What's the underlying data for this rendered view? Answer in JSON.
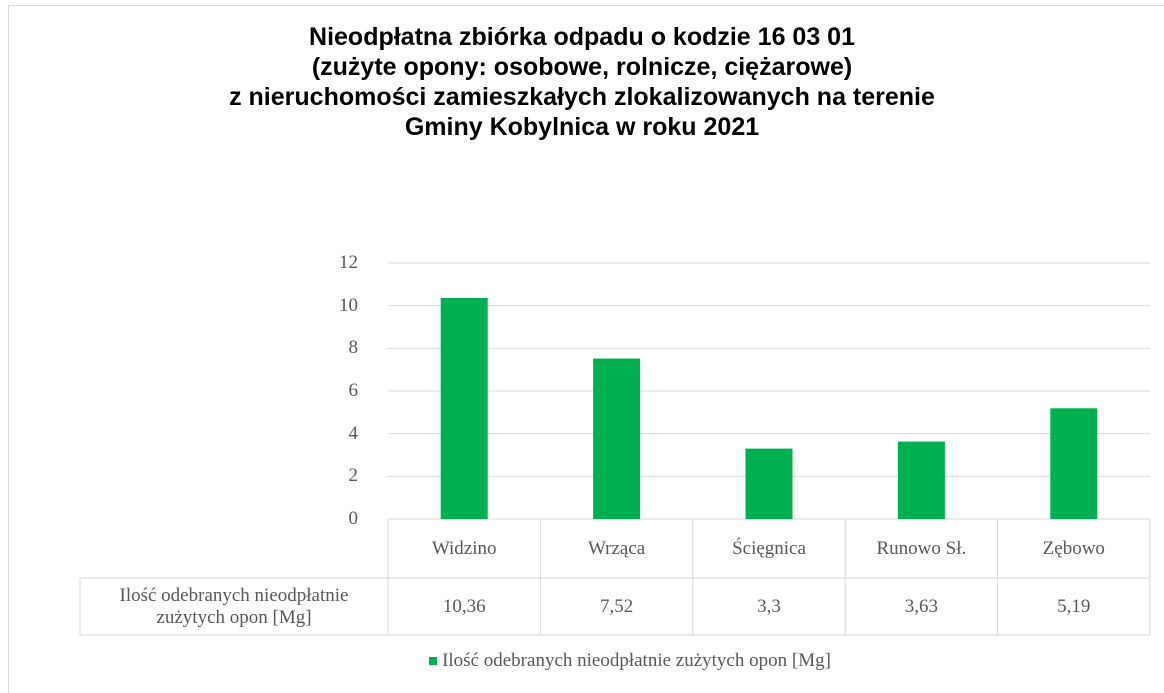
{
  "chart_data": {
    "type": "bar",
    "title": "Nieodpłatna zbiórka odpadu o kodzie 16 03 01\n(zużyte opony: osobowe, rolnicze, ciężarowe)\nz nieruchomości zamieszkałych zlokalizowanych na terenie\nGminy Kobylnica w roku 2021",
    "categories": [
      "Widzino",
      "Wrząca",
      "Ścięgnica",
      "Runowo Sł.",
      "Zębowo"
    ],
    "series": [
      {
        "name": "Ilość odebranych nieodpłatnie zużytych opon [Mg]",
        "color": "#00b050",
        "values": [
          10.36,
          7.52,
          3.3,
          3.63,
          5.19
        ],
        "value_labels": [
          "10,36",
          "7,52",
          "3,3",
          "3,63",
          "5,19"
        ]
      }
    ],
    "ylim": [
      0,
      12
    ],
    "yticks": [
      0,
      2,
      4,
      6,
      8,
      10,
      12
    ],
    "grid": true,
    "legend": "bottom",
    "data_table": true
  }
}
